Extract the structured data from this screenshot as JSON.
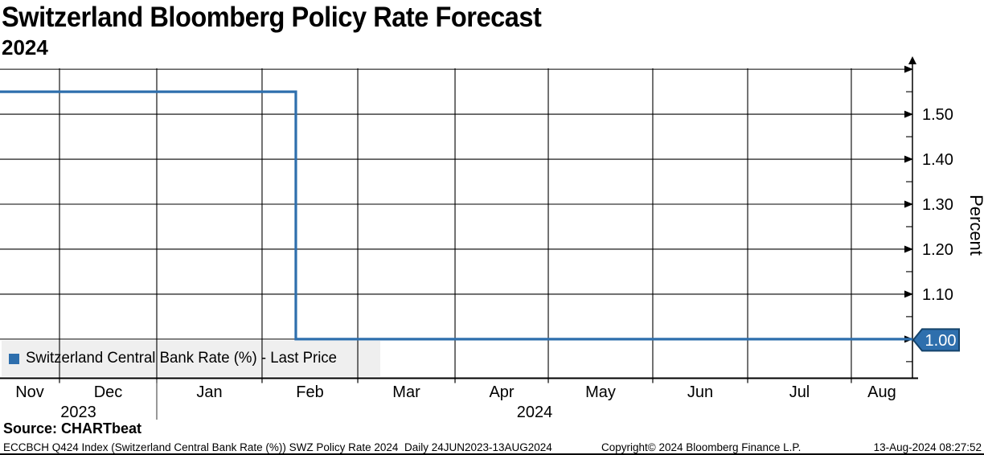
{
  "header": {
    "title": "Switzerland Bloomberg Policy Rate Forecast",
    "subtitle": "2024"
  },
  "legend": {
    "marker_icon": "blue-square",
    "label": "Switzerland Central Bank Rate (%) - Last Price"
  },
  "last_price_badge": {
    "text": "1.00"
  },
  "footer": {
    "source": "Source: CHARTbeat",
    "description": "ECCBCH Q424 Index (Switzerland Central Bank Rate (%)) SWZ Policy Rate 2024  Daily 24JUN2023-13AUG2024",
    "copyright": "Copyright© 2024 Bloomberg Finance L.P.",
    "timestamp": "13-Aug-2024 08:27:52"
  },
  "colors": {
    "line": "#2E6FAD",
    "badge_fill": "#2E6FAD",
    "badge_border": "#15436B",
    "badge_text": "#FFFFFF",
    "legend_bg": "#EFEFEF",
    "grid": "#000000"
  },
  "chart_data": {
    "type": "line",
    "step": true,
    "title": "Switzerland Bloomberg Policy Rate Forecast 2024",
    "ylabel": "Percent",
    "ylim": [
      0.914,
      1.602
    ],
    "grid": true,
    "legend_position": "bottom-left",
    "y_gridlines": [
      {
        "value": 1.6,
        "label": ""
      },
      {
        "value": 1.5,
        "label": "1.50"
      },
      {
        "value": 1.4,
        "label": "1.40"
      },
      {
        "value": 1.3,
        "label": "1.30"
      },
      {
        "value": 1.2,
        "label": "1.20"
      },
      {
        "value": 1.1,
        "label": "1.10"
      },
      {
        "value": 1.0,
        "label": ""
      }
    ],
    "y_minor_ticks": [
      1.55,
      1.45,
      1.35,
      1.25,
      1.15,
      1.05,
      0.95
    ],
    "x_axis": {
      "month_labels": [
        "Nov",
        "Dec",
        "Jan",
        "Feb",
        "Mar",
        "Apr",
        "May",
        "Jun",
        "Jul",
        "Aug"
      ],
      "boundaries_frac": [
        0.0652,
        0.1718,
        0.2872,
        0.3921,
        0.4987,
        0.6009,
        0.7154,
        0.8194,
        0.933
      ],
      "year_divider_frac": 0.1718,
      "years": [
        {
          "label": "2023",
          "start_frac": 0.0,
          "end_frac": 0.1718
        },
        {
          "label": "2024",
          "start_frac": 0.1718,
          "end_frac": 1.0
        }
      ]
    },
    "series": [
      {
        "name": "Switzerland Central Bank Rate (%) - Last Price",
        "color": "#2E6FAD",
        "points_frac_value": [
          [
            0.0,
            1.55
          ],
          [
            0.3242,
            1.55
          ],
          [
            0.3242,
            1.0
          ],
          [
            1.0,
            1.0
          ]
        ]
      }
    ],
    "last_price": 1.0
  }
}
